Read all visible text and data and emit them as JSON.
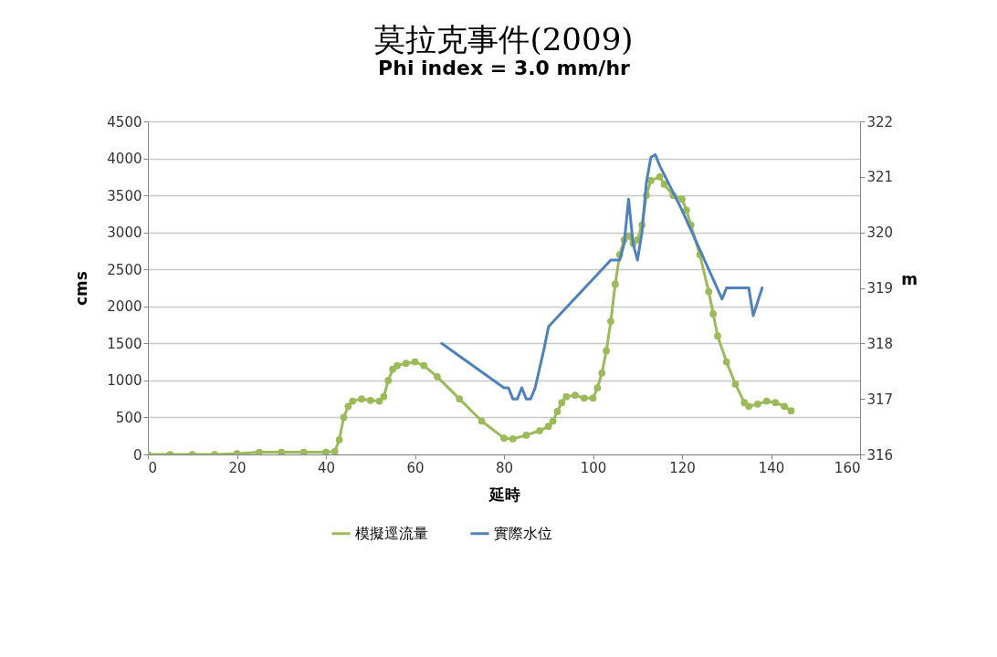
{
  "chart_data": {
    "type": "line",
    "title": "莫拉克事件(2009)",
    "subtitle": "Phi index =   3.0 mm/hr",
    "xlabel": "延時",
    "ylabel": "cms",
    "y2label": "m",
    "xlim": [
      0,
      160
    ],
    "xticks": [
      0,
      20,
      40,
      60,
      80,
      100,
      120,
      140,
      160
    ],
    "ylim": [
      0,
      4500
    ],
    "yticks": [
      0,
      500,
      1000,
      1500,
      2000,
      2500,
      3000,
      3500,
      4000,
      4500
    ],
    "y2lim": [
      316,
      322
    ],
    "y2ticks": [
      316,
      317,
      318,
      319,
      320,
      321,
      322
    ],
    "grid": "y",
    "legend": "bottom",
    "series": [
      {
        "name": "模擬逕流量",
        "color": "#9bbb59",
        "marker": "circle",
        "x": [
          0,
          5,
          10,
          15,
          20,
          25,
          30,
          35,
          40,
          42,
          43,
          44,
          45,
          46,
          48,
          50,
          52,
          53,
          54,
          55,
          56,
          58,
          60,
          62,
          65,
          70,
          75,
          80,
          82,
          85,
          88,
          90,
          91,
          92,
          93,
          94,
          96,
          98,
          100,
          101,
          102,
          103,
          104,
          105,
          106,
          107,
          108,
          109,
          110,
          111,
          112,
          113,
          115,
          116,
          118,
          120,
          121,
          122,
          124,
          126,
          127,
          128,
          130,
          132,
          134,
          135,
          137,
          139,
          141,
          143,
          144.5
        ],
        "values": [
          0,
          0,
          0,
          0,
          10,
          30,
          30,
          30,
          30,
          40,
          200,
          500,
          650,
          720,
          750,
          730,
          720,
          780,
          1000,
          1150,
          1200,
          1230,
          1250,
          1200,
          1050,
          750,
          450,
          220,
          210,
          260,
          320,
          380,
          450,
          580,
          700,
          780,
          800,
          760,
          760,
          900,
          1100,
          1400,
          1800,
          2300,
          2700,
          2900,
          2950,
          2850,
          2900,
          3100,
          3500,
          3700,
          3750,
          3650,
          3500,
          3450,
          3300,
          3100,
          2700,
          2200,
          1900,
          1600,
          1250,
          950,
          700,
          650,
          680,
          720,
          700,
          650,
          590
        ]
      },
      {
        "name": "實際水位",
        "color": "#4f81bd",
        "marker": "none",
        "axis": "y2",
        "x": [
          66,
          80,
          81,
          82,
          83,
          84,
          85,
          86,
          87,
          89,
          90,
          104,
          105,
          106,
          107,
          108,
          109,
          110,
          111,
          112,
          113,
          114,
          115,
          120,
          129,
          130,
          135,
          136,
          138
        ],
        "values": [
          318,
          317.2,
          317.2,
          317,
          317,
          317.2,
          317,
          317,
          317.2,
          317.9,
          318.3,
          319.5,
          319.5,
          319.5,
          319.8,
          320.6,
          319.8,
          319.5,
          320,
          320.9,
          321.35,
          321.4,
          321.2,
          320.4,
          318.8,
          319,
          319,
          318.5,
          319
        ]
      }
    ]
  }
}
